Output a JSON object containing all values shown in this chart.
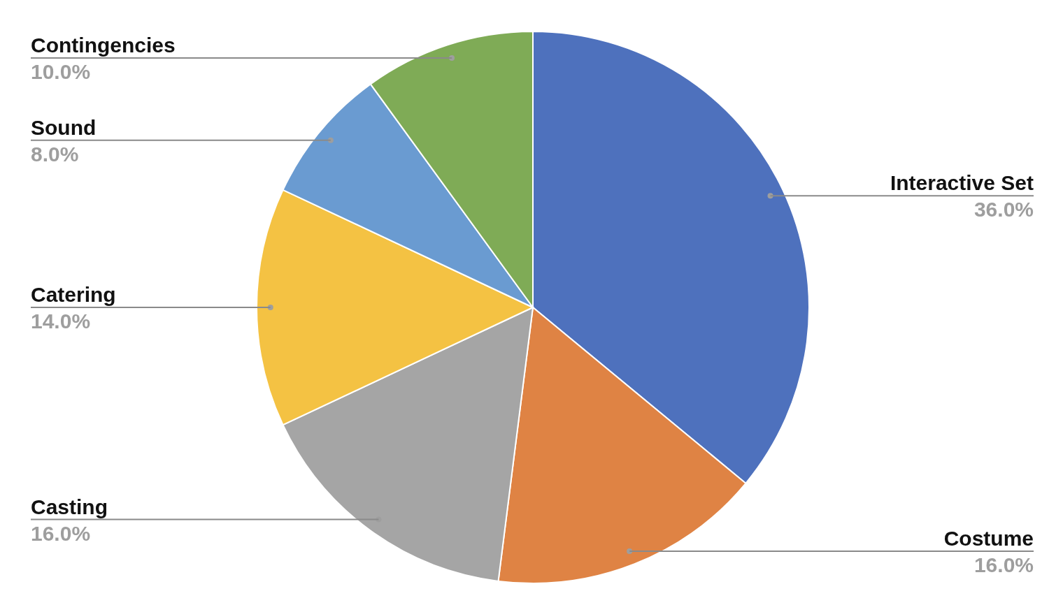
{
  "chart_data": {
    "type": "pie",
    "categories": [
      "Interactive Set",
      "Costume",
      "Casting",
      "Catering",
      "Sound",
      "Contingencies"
    ],
    "values": [
      36,
      16,
      16,
      14,
      8,
      10
    ],
    "value_labels": [
      "36.0%",
      "16.0%",
      "16.0%",
      "14.0%",
      "8.0%",
      "10.0%"
    ],
    "colors": [
      "#4e71bd",
      "#df8344",
      "#a5a5a5",
      "#f4c243",
      "#6a9bd1",
      "#7fab56"
    ]
  }
}
